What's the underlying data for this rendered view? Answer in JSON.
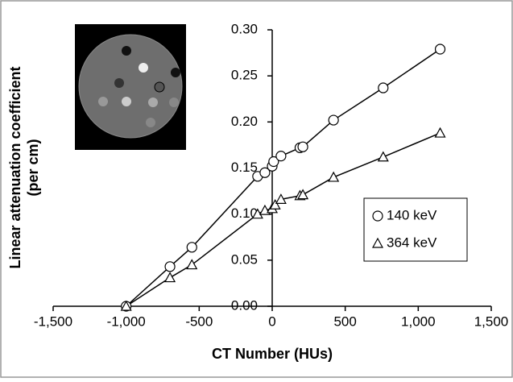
{
  "chart_data": {
    "type": "scatter",
    "xlabel": "CT Number (HUs)",
    "ylabel": [
      "Linear attenuation coefficient",
      "(per cm)"
    ],
    "xlim": [
      -1500,
      1500
    ],
    "xticks": [
      {
        "value": -1500,
        "label": "-1,500"
      },
      {
        "value": -1000,
        "label": "-1,000"
      },
      -500,
      0,
      500,
      {
        "value": 1000,
        "label": "1,000"
      },
      {
        "value": 1500,
        "label": "1,500"
      }
    ],
    "ylim": [
      0,
      0.3
    ],
    "yticks": [
      {
        "value": 0,
        "label": "0.00"
      },
      0.05,
      {
        "value": 0.1,
        "label": "0.10"
      },
      0.15,
      {
        "value": 0.2,
        "label": "0.20"
      },
      0.25,
      {
        "value": 0.3,
        "label": "0.30"
      }
    ],
    "legend": "right",
    "series": [
      {
        "name": "140 keV",
        "color": "#000000",
        "marker": "circle",
        "x": [
          -1000,
          -700,
          -550,
          -100,
          -50,
          0,
          10,
          60,
          190,
          210,
          420,
          760,
          1150
        ],
        "values": [
          0,
          0.043,
          0.064,
          0.141,
          0.145,
          0.152,
          0.157,
          0.163,
          0.172,
          0.173,
          0.202,
          0.237,
          0.279
        ]
      },
      {
        "name": "364 keV",
        "color": "#000000",
        "marker": "triangle",
        "x": [
          -1000,
          -700,
          -550,
          -100,
          -50,
          0,
          20,
          60,
          190,
          210,
          420,
          760,
          1150
        ],
        "values": [
          0,
          0.031,
          0.045,
          0.1,
          0.104,
          0.106,
          0.11,
          0.116,
          0.12,
          0.121,
          0.14,
          0.162,
          0.188
        ]
      }
    ]
  }
}
